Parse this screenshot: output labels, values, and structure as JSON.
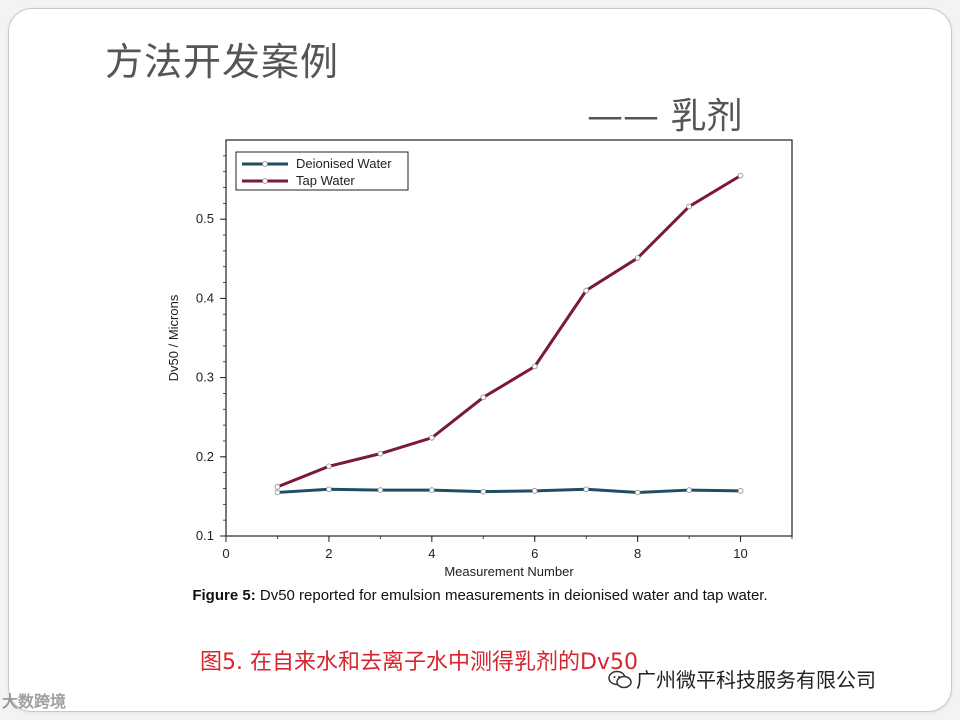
{
  "slide": {
    "title": "方法开发案例",
    "subtitle": "—— 乳剂"
  },
  "caption": {
    "label": "Figure 5:",
    "text": " Dv50 reported for emulsion measurements in deionised water and tap water."
  },
  "red_caption": "图5.  在自来水和去离子水中测得乳剂的Dv50",
  "watermarks": {
    "left": "大数跨境",
    "right": "广州微平科技服务有限公司",
    "right_icon": "wechat-icon"
  },
  "chart_data": {
    "type": "line",
    "xlabel": "Measurement Number",
    "ylabel": "Dv50 / Microns",
    "xlim": [
      0,
      11
    ],
    "ylim": [
      0.1,
      0.6
    ],
    "x_ticks": [
      0,
      2,
      4,
      6,
      8,
      10
    ],
    "y_ticks": [
      0.1,
      0.2,
      0.3,
      0.4,
      0.5
    ],
    "grid": false,
    "legend_position": "top-left",
    "x": [
      1,
      2,
      3,
      4,
      5,
      6,
      7,
      8,
      9,
      10
    ],
    "series": [
      {
        "name": "Deionised Water",
        "color": "#1f4e63",
        "values": [
          0.155,
          0.159,
          0.158,
          0.158,
          0.156,
          0.157,
          0.159,
          0.155,
          0.158,
          0.157
        ]
      },
      {
        "name": "Tap Water",
        "color": "#7a1a35",
        "values": [
          0.162,
          0.188,
          0.204,
          0.224,
          0.275,
          0.314,
          0.41,
          0.451,
          0.516,
          0.555
        ]
      }
    ]
  }
}
